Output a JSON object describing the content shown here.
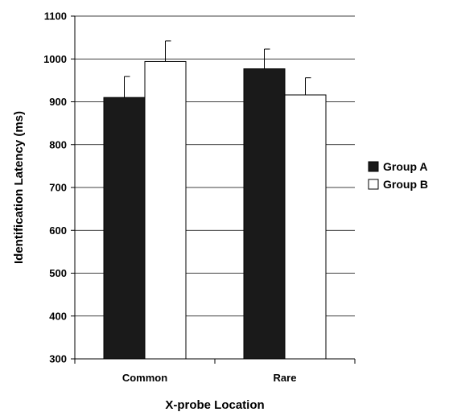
{
  "chart_data": {
    "type": "bar",
    "title": "",
    "xlabel": "X-probe Location",
    "ylabel": "Identification Latency (ms)",
    "ylim": [
      300,
      1100
    ],
    "yticks": [
      300,
      400,
      500,
      600,
      700,
      800,
      900,
      1000,
      1100
    ],
    "ytick_labels": [
      "300",
      "400",
      "500",
      "600",
      "700",
      "800",
      "900",
      "1000",
      "1100"
    ],
    "grid": true,
    "legend_position": "right",
    "categories": [
      "Common",
      "Rare"
    ],
    "series": [
      {
        "name": "Group A",
        "values": [
          910,
          977
        ],
        "errors": [
          49,
          46
        ],
        "color": "#1a1a1a"
      },
      {
        "name": "Group B",
        "values": [
          994,
          916
        ],
        "errors": [
          48,
          40
        ],
        "color": "#ffffff"
      }
    ]
  }
}
